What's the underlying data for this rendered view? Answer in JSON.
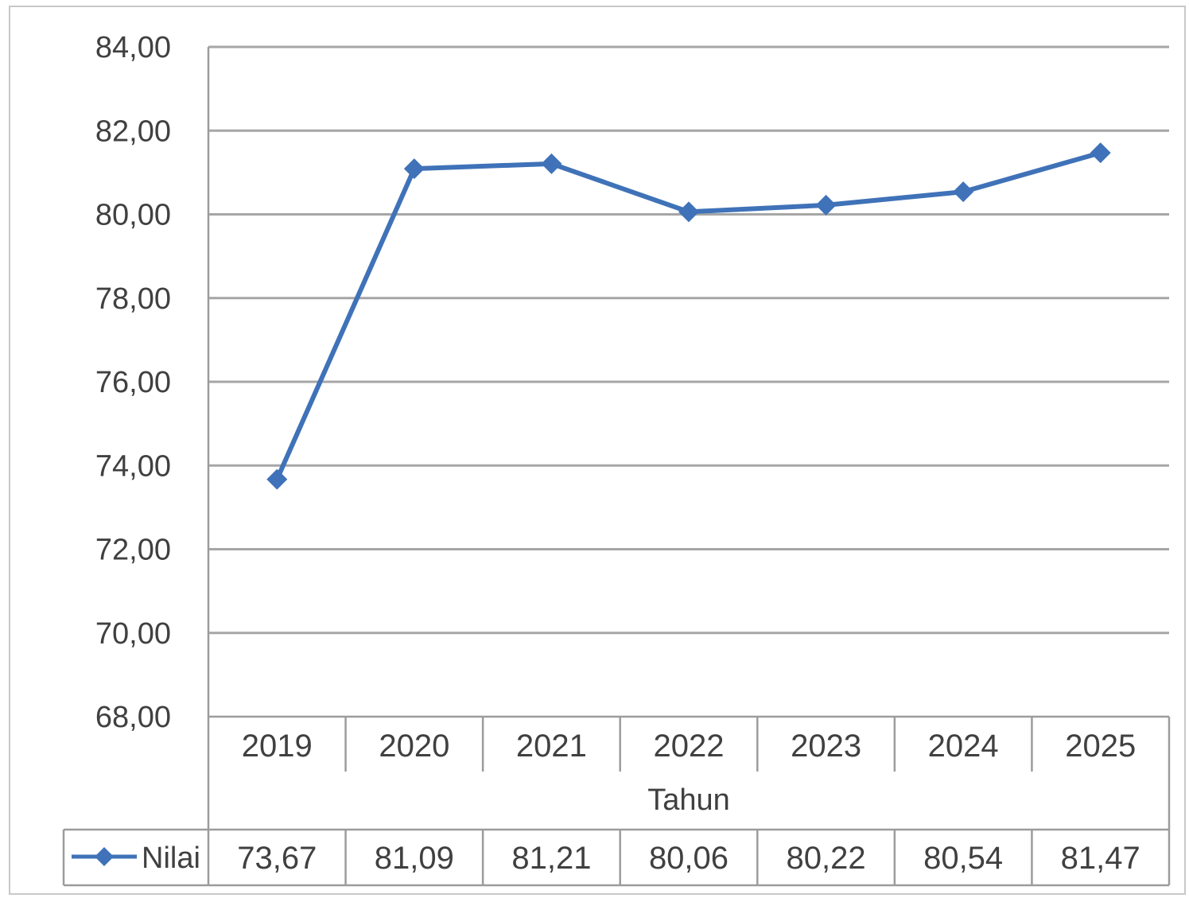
{
  "chart_data": {
    "type": "line",
    "xlabel": "Tahun",
    "ylabel": "",
    "ylim": [
      68,
      84
    ],
    "yticks": [
      "84,00",
      "82,00",
      "80,00",
      "78,00",
      "76,00",
      "74,00",
      "72,00",
      "70,00",
      "68,00"
    ],
    "ytick_values": [
      84,
      82,
      80,
      78,
      76,
      74,
      72,
      70,
      68
    ],
    "categories": [
      "2019",
      "2020",
      "2021",
      "2022",
      "2023",
      "2024",
      "2025"
    ],
    "series": [
      {
        "name": "Nilai",
        "values": [
          73.67,
          81.09,
          81.21,
          80.06,
          80.22,
          80.54,
          81.47
        ],
        "labels": [
          "73,67",
          "81,09",
          "81,21",
          "80,06",
          "80,22",
          "80,54",
          "81,47"
        ],
        "color": "#3f72b8",
        "marker": "diamond"
      }
    ],
    "grid": true,
    "data_table": true
  }
}
